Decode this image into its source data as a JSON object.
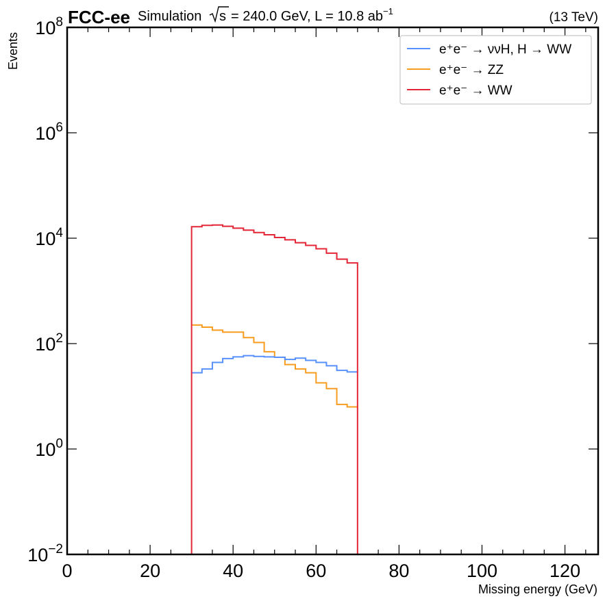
{
  "header": {
    "experiment": "FCC-ee",
    "simulation_prefix": "Simulation",
    "sqrt_s": "s",
    "energy_lumi": "= 240.0 GeV, L = 10.8 ab",
    "lumi_exp": "−1",
    "right_label": "(13 TeV)"
  },
  "chart_data": {
    "type": "line",
    "style": "step-histogram",
    "xlabel": "Missing energy (GeV)",
    "ylabel": "Events",
    "xlim": [
      0,
      128
    ],
    "ylim": [
      0.01,
      100000000
    ],
    "yscale": "log",
    "x_ticks": [
      0,
      20,
      40,
      60,
      80,
      100,
      120
    ],
    "x_tick_labels": [
      "0",
      "20",
      "40",
      "60",
      "80",
      "100",
      "120"
    ],
    "y_tick_labels": [
      {
        "base": "10",
        "exp": "−2",
        "value": 0.01
      },
      {
        "base": "10",
        "exp": "0",
        "value": 1
      },
      {
        "base": "10",
        "exp": "2",
        "value": 100
      },
      {
        "base": "10",
        "exp": "4",
        "value": 10000
      },
      {
        "base": "10",
        "exp": "6",
        "value": 1000000
      },
      {
        "base": "10",
        "exp": "8",
        "value": 100000000
      }
    ],
    "legend_position": "top-right",
    "bin_edges": [
      30,
      32.5,
      35,
      37.5,
      40,
      42.5,
      45,
      47.5,
      50,
      52.5,
      55,
      57.5,
      60,
      62.5,
      65,
      67.5,
      70
    ],
    "series": [
      {
        "name": "e⁺e⁻ → ννH, H → WW",
        "color": "#5790fc",
        "values": [
          28,
          33,
          44,
          52,
          56,
          59,
          57,
          56,
          55,
          50,
          53,
          48,
          44,
          38,
          31,
          29
        ]
      },
      {
        "name": "e⁺e⁻ → ZZ",
        "color": "#f89c20",
        "values": [
          225,
          205,
          180,
          165,
          165,
          130,
          105,
          70,
          55,
          40,
          33,
          28,
          18,
          14,
          7,
          6.3
        ]
      },
      {
        "name": "e⁺e⁻ → WW",
        "color": "#e42536",
        "values": [
          16500,
          17500,
          17800,
          16800,
          15500,
          14200,
          12800,
          11600,
          10300,
          9300,
          8200,
          7300,
          6300,
          5200,
          4000,
          3400
        ]
      }
    ]
  }
}
